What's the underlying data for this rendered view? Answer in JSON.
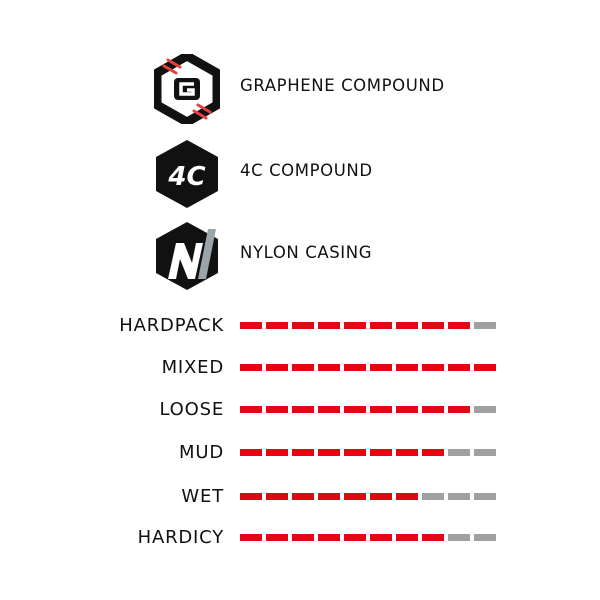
{
  "features": [
    {
      "icon": "graphene-g-hexagon-icon",
      "label": "GRAPHENE COMPOUND"
    },
    {
      "icon": "4c-hexagon-icon",
      "label": "4C COMPOUND",
      "icon_text": "4C"
    },
    {
      "icon": "nylon-n-hexagon-icon",
      "label": "NYLON CASING"
    }
  ],
  "ratings": [
    {
      "label": "HARDPACK",
      "value": 9,
      "max": 10
    },
    {
      "label": "MIXED",
      "value": 10,
      "max": 10
    },
    {
      "label": "LOOSE",
      "value": 9,
      "max": 10
    },
    {
      "label": "MUD",
      "value": 8,
      "max": 10
    },
    {
      "label": "WET",
      "value": 7,
      "max": 10
    },
    {
      "label": "HARDICY",
      "value": 8,
      "max": 10
    }
  ],
  "colors": {
    "filled": "#e30613",
    "empty": "#a0a0a0",
    "icon": "#111111",
    "accent_red": "#e8403a",
    "nylon_gray": "#9aa5ab"
  }
}
